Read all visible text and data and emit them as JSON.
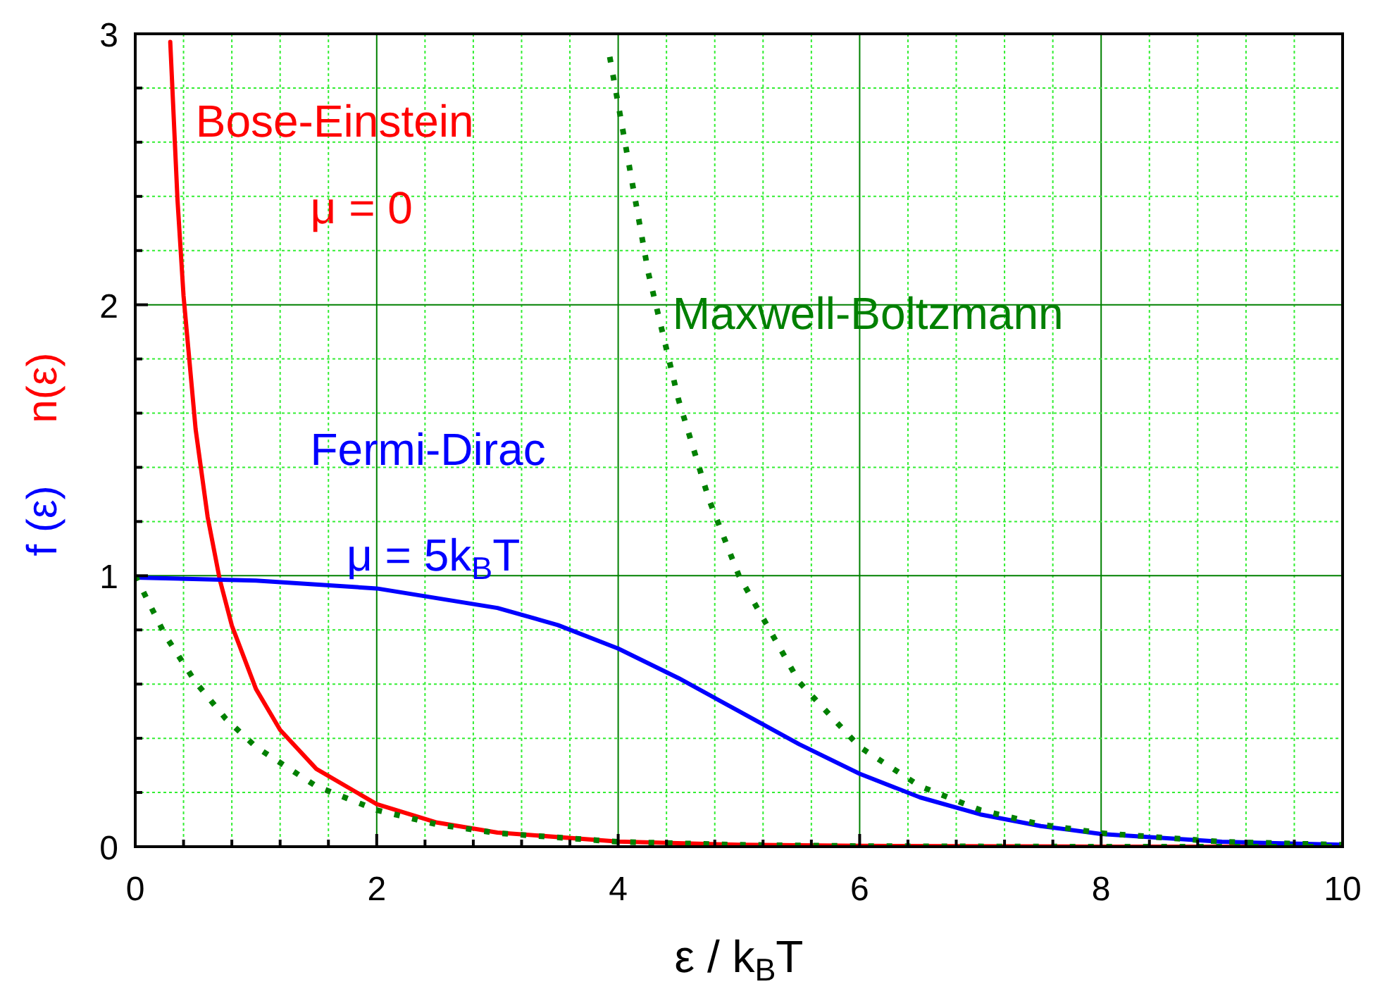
{
  "chart_data": {
    "type": "line",
    "xlabel": "ε / k$_{B}$T",
    "ylabel": "f (ε)   n(ε)",
    "xlim": [
      0,
      10
    ],
    "ylim": [
      0,
      3
    ],
    "xticks": [
      0,
      {
        "value": 0.4,
        "label": null
      },
      {
        "value": 0.8,
        "label": null
      },
      {
        "value": 1.2,
        "label": null
      },
      {
        "value": 1.6,
        "label": null
      },
      2,
      {
        "value": 2.4,
        "label": null
      },
      {
        "value": 2.8,
        "label": null
      },
      {
        "value": 3.2,
        "label": null
      },
      {
        "value": 3.6,
        "label": null
      },
      4,
      {
        "value": 4.4,
        "label": null
      },
      {
        "value": 4.8,
        "label": null
      },
      {
        "value": 5.2,
        "label": null
      },
      {
        "value": 5.6,
        "label": null
      },
      6,
      {
        "value": 6.4,
        "label": null
      },
      {
        "value": 6.8,
        "label": null
      },
      {
        "value": 7.2,
        "label": null
      },
      {
        "value": 7.6,
        "label": null
      },
      8,
      {
        "value": 8.4,
        "label": null
      },
      {
        "value": 8.8,
        "label": null
      },
      {
        "value": 9.2,
        "label": null
      },
      {
        "value": 9.6,
        "label": null
      },
      10
    ],
    "yticks": [
      0,
      {
        "value": 0.2,
        "label": null
      },
      {
        "value": 0.4,
        "label": null
      },
      {
        "value": 0.6,
        "label": null
      },
      {
        "value": 0.8,
        "label": null
      },
      1,
      {
        "value": 1.2,
        "label": null
      },
      {
        "value": 1.4,
        "label": null
      },
      {
        "value": 1.6,
        "label": null
      },
      {
        "value": 1.8,
        "label": null
      },
      2,
      {
        "value": 2.2,
        "label": null
      },
      {
        "value": 2.4,
        "label": null
      },
      {
        "value": 2.6,
        "label": null
      },
      {
        "value": 2.8,
        "label": null
      },
      3
    ],
    "grid": true,
    "line_style": "solid",
    "annotations": [
      "μ = 0",
      "μ = 5k$_{B}$T"
    ],
    "series": [
      {
        "name": "Bose-Einstein",
        "color": "#ff0000",
        "x": [
          0.29,
          0.35,
          0.4,
          0.5,
          0.6,
          0.7,
          0.8,
          1,
          1.2,
          1.5,
          2,
          2.5,
          3,
          4,
          5,
          6,
          8,
          10
        ],
        "values": [
          2.97,
          2.386,
          2.033,
          1.541,
          1.216,
          0.986,
          0.816,
          0.582,
          0.431,
          0.287,
          0.157,
          0.089,
          0.052,
          0.019,
          0.007,
          0.003,
          0,
          0
        ]
      },
      {
        "name": "Fermi-Dirac",
        "color": "#0000ff",
        "x": [
          0,
          1,
          2,
          3,
          3.5,
          4,
          4.5,
          5,
          5.5,
          6,
          6.5,
          7,
          7.5,
          8,
          9,
          10
        ],
        "values": [
          0.993,
          0.982,
          0.953,
          0.881,
          0.818,
          0.731,
          0.622,
          0.5,
          0.378,
          0.269,
          0.182,
          0.119,
          0.076,
          0.047,
          0.018,
          0.007
        ]
      },
      {
        "name": "Maxwell-Boltzmann",
        "color": "#008000",
        "line_style": "dotted",
        "x": [
          3.93,
          4.25,
          4.5,
          4.75,
          5,
          5.5,
          6,
          6.5,
          7,
          7.5,
          8,
          9,
          10
        ],
        "values": [
          2.915,
          2.117,
          1.649,
          1.284,
          1,
          0.607,
          0.368,
          0.223,
          0.135,
          0.082,
          0.05,
          0.018,
          0.007
        ]
      },
      {
        "color": "#008000",
        "line_style": "dotted",
        "x": [
          0,
          0.25,
          0.5,
          0.75,
          1,
          1.5,
          2,
          2.5,
          3,
          4,
          5,
          6,
          8,
          10
        ],
        "values": [
          1,
          0.779,
          0.607,
          0.472,
          0.368,
          0.223,
          0.135,
          0.082,
          0.05,
          0.018,
          0.007,
          0.002,
          0,
          0
        ]
      }
    ]
  }
}
